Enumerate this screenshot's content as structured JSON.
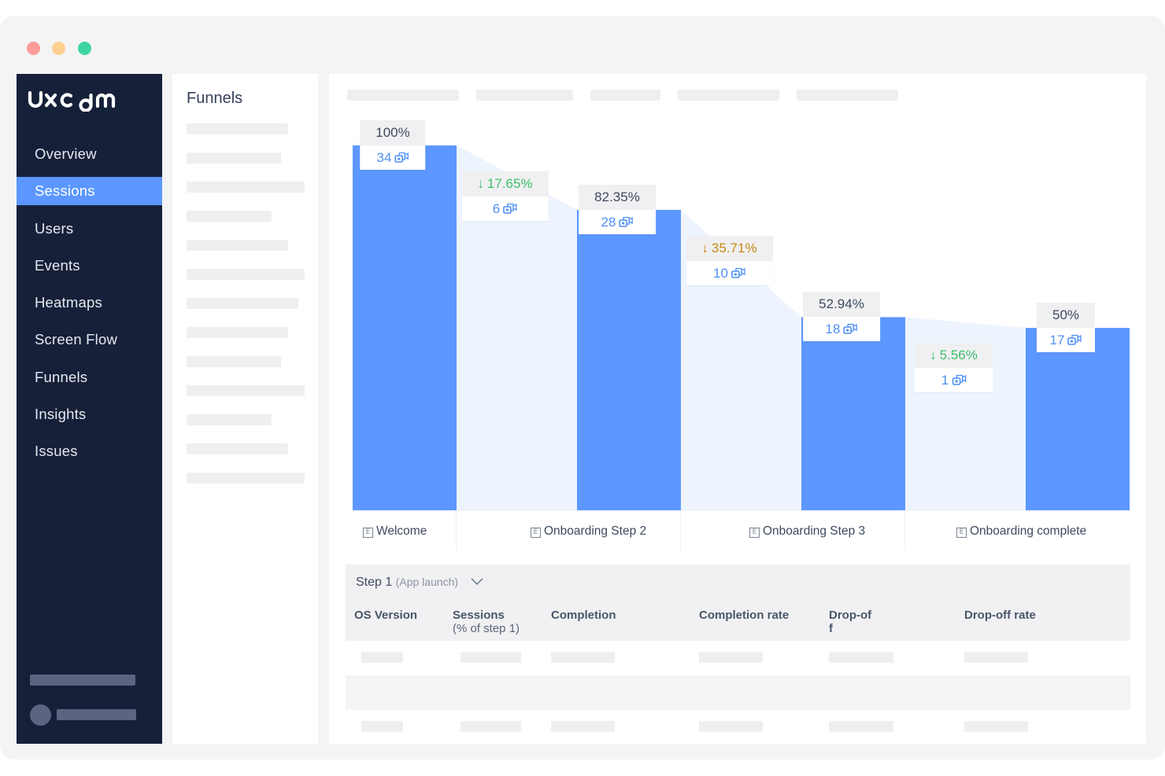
{
  "app": {
    "brand": "uxcam",
    "nav": [
      {
        "label": "Overview",
        "active": false
      },
      {
        "label": "Sessions",
        "active": true
      },
      {
        "label": "Users",
        "active": false
      },
      {
        "label": "Events",
        "active": false
      },
      {
        "label": "Heatmaps",
        "active": false
      },
      {
        "label": "Screen Flow",
        "active": false
      },
      {
        "label": "Funnels",
        "active": false
      },
      {
        "label": "Insights",
        "active": false
      },
      {
        "label": "Issues",
        "active": false
      }
    ]
  },
  "panel": {
    "title": "Funnels"
  },
  "funnel": {
    "steps": [
      {
        "name": "Welcome",
        "percent": "100%",
        "sessions": "34",
        "level": 1.0
      },
      {
        "name": "Onboarding Step 2",
        "percent": "82.35%",
        "sessions": "28",
        "level": 0.8235
      },
      {
        "name": "Onboarding Step 3",
        "percent": "52.94%",
        "sessions": "18",
        "level": 0.5294
      },
      {
        "name": "Onboarding complete",
        "percent": "50%",
        "sessions": "17",
        "level": 0.5
      }
    ],
    "dropoffs": [
      {
        "percent": "17.65%",
        "sessions": "6",
        "tone": "green"
      },
      {
        "percent": "35.71%",
        "sessions": "10",
        "tone": "amber"
      },
      {
        "percent": "5.56%",
        "sessions": "1",
        "tone": "green"
      }
    ],
    "colors": {
      "bar": "#5c97ff",
      "flow": "#eef4fe",
      "drop_green": "#3bbf6a",
      "drop_amber": "#c68a12"
    }
  },
  "table": {
    "step_label": "Step 1",
    "step_sub": "(App launch)",
    "columns": [
      {
        "line1": "OS Version",
        "line2": ""
      },
      {
        "line1": "Sessions",
        "line2": "(% of step 1)"
      },
      {
        "line1": "Completion",
        "line2": ""
      },
      {
        "line1": "Completion rate",
        "line2": ""
      },
      {
        "line1": "Drop-of",
        "line2": "f"
      },
      {
        "line1": "Drop-off rate",
        "line2": ""
      }
    ]
  }
}
